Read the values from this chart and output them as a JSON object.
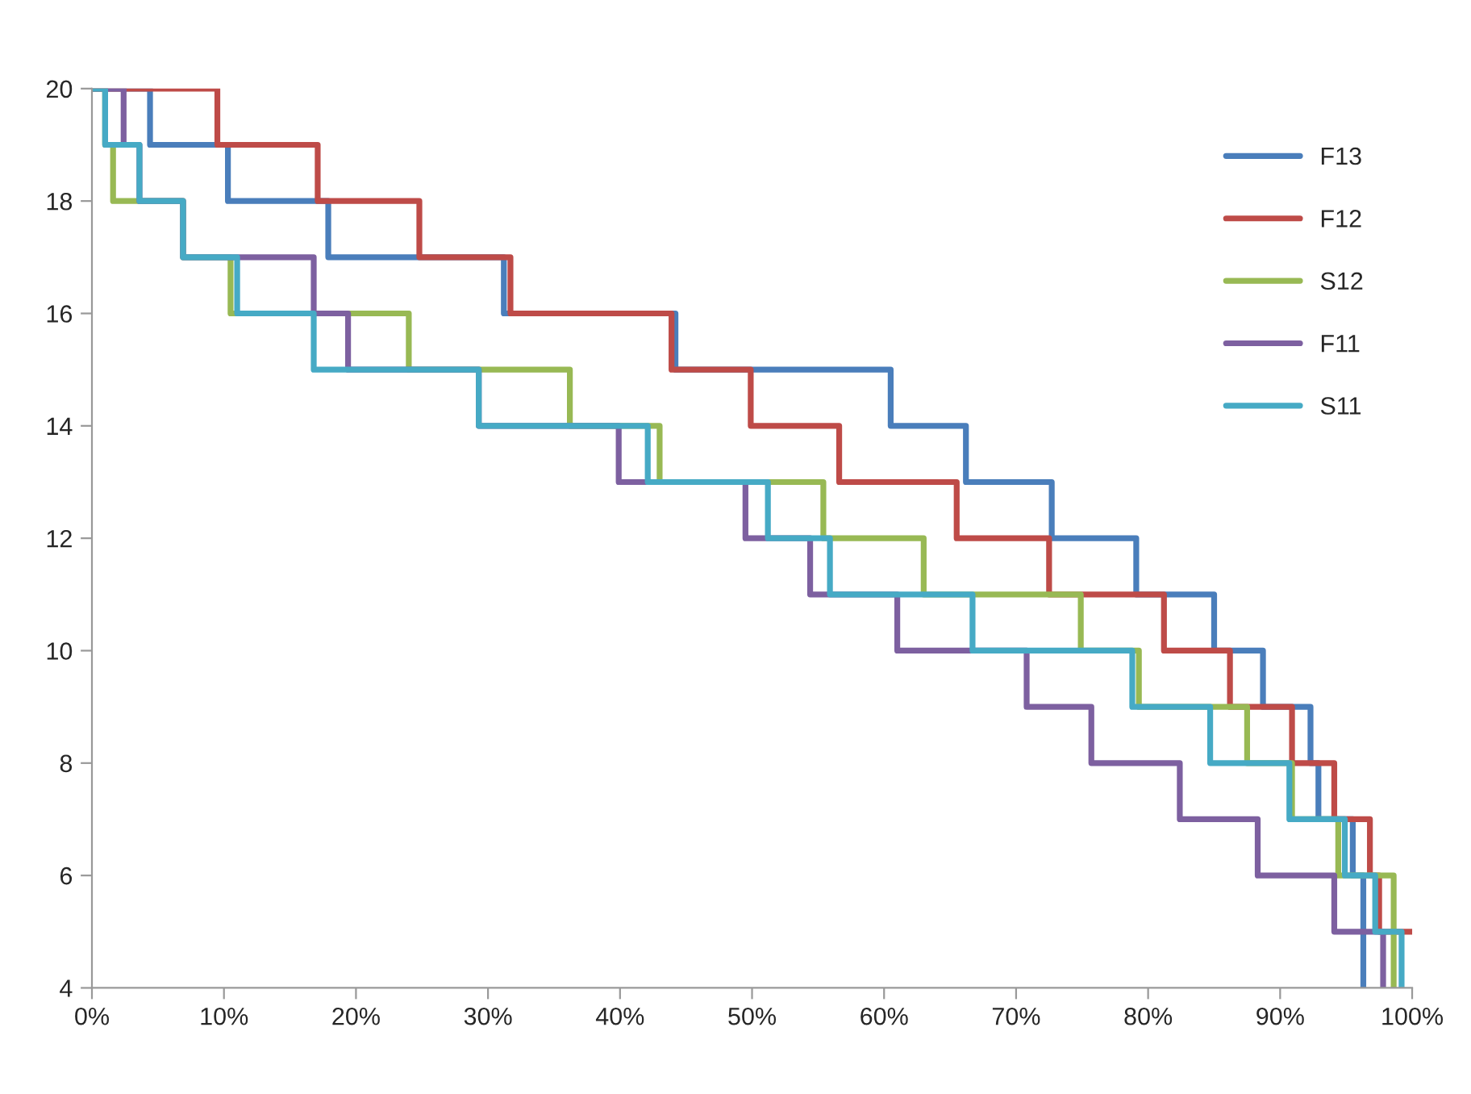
{
  "chart_data": {
    "type": "step",
    "xlim": [
      0,
      100
    ],
    "xticks": [
      {
        "value": 0,
        "label": "0%"
      },
      {
        "value": 10,
        "label": "10%"
      },
      {
        "value": 20,
        "label": "20%"
      },
      {
        "value": 30,
        "label": "30%"
      },
      {
        "value": 40,
        "label": "40%"
      },
      {
        "value": 50,
        "label": "50%"
      },
      {
        "value": 60,
        "label": "60%"
      },
      {
        "value": 70,
        "label": "70%"
      },
      {
        "value": 80,
        "label": "80%"
      },
      {
        "value": 90,
        "label": "90%"
      },
      {
        "value": 100,
        "label": "100%"
      }
    ],
    "ylim": [
      4,
      20
    ],
    "yticks": [
      4,
      6,
      8,
      10,
      12,
      14,
      16,
      18,
      20
    ],
    "grid": false,
    "legend": "top right",
    "marker": "none",
    "line_style": "solid",
    "series": [
      {
        "name": "F13",
        "color": "#4a7ebb",
        "x": [
          0,
          4.4,
          10.3,
          17.9,
          31.2,
          44.2,
          60.5,
          66.2,
          72.7,
          79.1,
          85.0,
          88.7,
          92.3,
          92.9,
          95.5,
          96.3,
          96.3
        ],
        "values": [
          20,
          19,
          18,
          17,
          16,
          15,
          14,
          13,
          12,
          11,
          10,
          9,
          8,
          7,
          6,
          5,
          4
        ]
      },
      {
        "name": "F12",
        "color": "#be4b48",
        "x": [
          0,
          9.5,
          17.1,
          24.8,
          31.7,
          43.9,
          49.9,
          56.6,
          65.5,
          72.5,
          81.2,
          86.2,
          90.9,
          94.1,
          96.8,
          97.5,
          100
        ],
        "values": [
          20,
          19,
          18,
          17,
          16,
          15,
          14,
          13,
          12,
          11,
          10,
          9,
          8,
          7,
          6,
          5,
          5
        ]
      },
      {
        "name": "S12",
        "color": "#98b954",
        "x": [
          0,
          1.0,
          1.6,
          6.9,
          10.5,
          24.0,
          36.2,
          43.0,
          55.4,
          63.0,
          74.9,
          79.3,
          87.5,
          90.9,
          94.4,
          98.6,
          98.6
        ],
        "values": [
          20,
          19,
          18,
          17,
          16,
          15,
          14,
          13,
          12,
          11,
          10,
          9,
          8,
          7,
          6,
          5,
          4
        ]
      },
      {
        "name": "F11",
        "color": "#7d60a0",
        "x": [
          0,
          2.4,
          3.6,
          6.9,
          16.8,
          19.4,
          29.3,
          39.9,
          49.5,
          54.4,
          61.0,
          70.8,
          75.7,
          82.4,
          88.3,
          94.1,
          97.8
        ],
        "values": [
          20,
          19,
          18,
          17,
          16,
          15,
          14,
          13,
          12,
          11,
          10,
          9,
          8,
          7,
          6,
          5,
          4
        ]
      },
      {
        "name": "S11",
        "color": "#46aac5",
        "x": [
          0,
          1.0,
          3.6,
          6.9,
          11.0,
          16.8,
          29.3,
          42.1,
          51.2,
          55.9,
          66.7,
          78.8,
          84.7,
          90.7,
          94.9,
          97.2,
          99.2
        ],
        "values": [
          20,
          19,
          18,
          17,
          16,
          15,
          14,
          13,
          12,
          11,
          10,
          9,
          8,
          7,
          6,
          5,
          4
        ]
      }
    ]
  }
}
